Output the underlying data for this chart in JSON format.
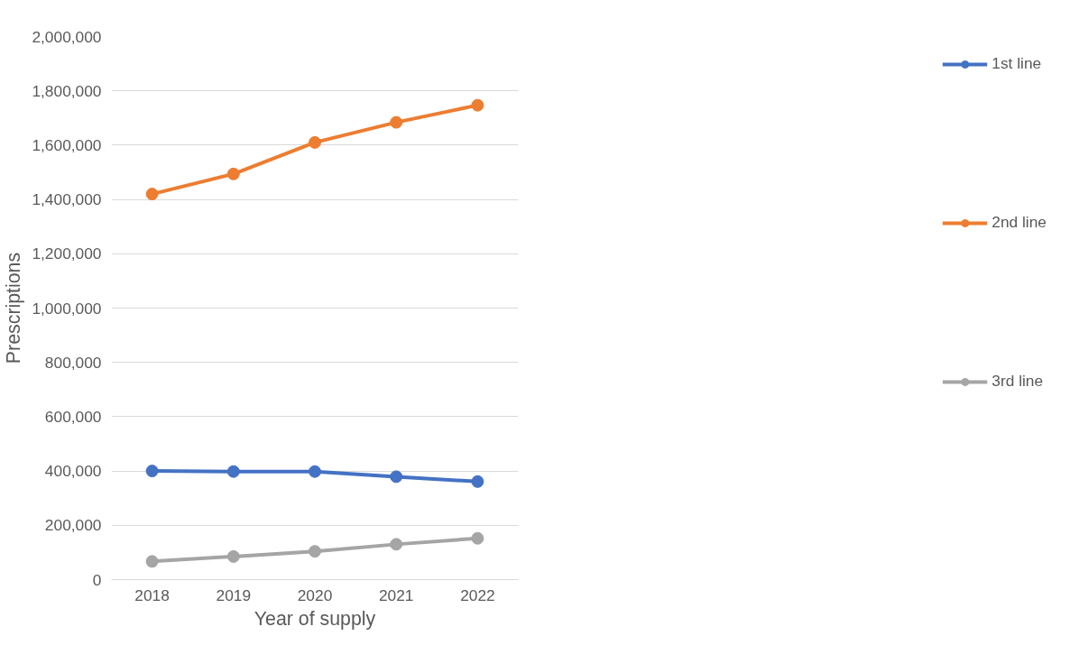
{
  "chart_data": {
    "type": "line",
    "xlabel": "Year of supply",
    "ylabel": "Prescriptions",
    "categories": [
      "2018",
      "2019",
      "2020",
      "2021",
      "2022"
    ],
    "series": [
      {
        "name": "1st line",
        "color": "#4472c4",
        "values": [
          400000,
          398000,
          398000,
          379000,
          361000
        ]
      },
      {
        "name": "2nd line",
        "color": "#ed7d31",
        "values": [
          1420000,
          1494000,
          1610000,
          1684000,
          1747000
        ]
      },
      {
        "name": "3rd line",
        "color": "#a5a5a5",
        "values": [
          67000,
          85000,
          104000,
          130000,
          152000
        ]
      }
    ],
    "ylim": [
      0,
      2000000
    ],
    "yticks": [
      {
        "value": 0,
        "label": "0"
      },
      {
        "value": 200000,
        "label": "200,000"
      },
      {
        "value": 400000,
        "label": "400,000"
      },
      {
        "value": 600000,
        "label": "600,000"
      },
      {
        "value": 800000,
        "label": "800,000"
      },
      {
        "value": 1000000,
        "label": "1,000,000"
      },
      {
        "value": 1200000,
        "label": "1,200,000"
      },
      {
        "value": 1400000,
        "label": "1,400,000"
      },
      {
        "value": 1600000,
        "label": "1,600,000"
      },
      {
        "value": 1800000,
        "label": "1,800,000"
      },
      {
        "value": 2000000,
        "label": "2,000,000"
      }
    ],
    "grid": "y",
    "legend": "right",
    "marker": "circle",
    "line_style": "solid"
  }
}
